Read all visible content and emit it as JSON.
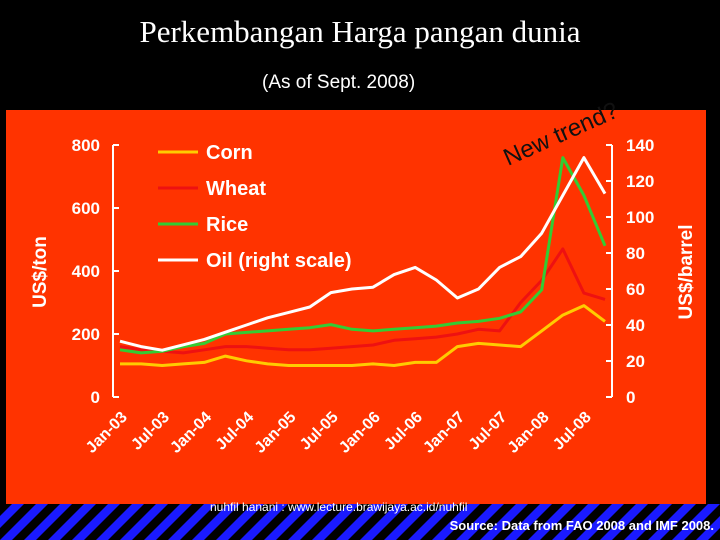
{
  "title": "Perkembangan Harga pangan dunia",
  "subtitle": "(As of Sept. 2008)",
  "watermark": "nuhfil hanani : www.lecture.brawijaya.ac.id/nuhfil",
  "source": "Source: Data from FAO 2008 and IMF 2008.",
  "annotation": "New trend?",
  "colors": {
    "panel": "#ff3300",
    "corn": "#ffcc00",
    "wheat": "#ee1111",
    "rice": "#33cc33",
    "oil": "#ffffff",
    "stripe_blue": "#1a1aff"
  },
  "chart_data": {
    "type": "line",
    "x": [
      "Jan-03",
      "Apr-03",
      "Jul-03",
      "Oct-03",
      "Jan-04",
      "Apr-04",
      "Jul-04",
      "Oct-04",
      "Jan-05",
      "Apr-05",
      "Jul-05",
      "Oct-05",
      "Jan-06",
      "Apr-06",
      "Jul-06",
      "Oct-06",
      "Jan-07",
      "Apr-07",
      "Jul-07",
      "Oct-07",
      "Jan-08",
      "Apr-08",
      "Jul-08",
      "Sep-08"
    ],
    "xticks": [
      "Jan-03",
      "Jul-03",
      "Jan-04",
      "Jul-04",
      "Jan-05",
      "Jul-05",
      "Jan-06",
      "Jul-06",
      "Jan-07",
      "Jul-07",
      "Jan-08",
      "Jul-08"
    ],
    "ylabel": "US$/ton",
    "y2label": "US$/barrel",
    "ylim": [
      0,
      800
    ],
    "y2lim": [
      0,
      140
    ],
    "yticks": [
      "0",
      "200",
      "400",
      "600",
      "800"
    ],
    "y2ticks": [
      "0",
      "20",
      "40",
      "60",
      "80",
      "100",
      "120",
      "140"
    ],
    "series": [
      {
        "name": "Corn",
        "axis": "left",
        "values": [
          105,
          105,
          100,
          105,
          110,
          130,
          115,
          105,
          100,
          100,
          100,
          100,
          105,
          100,
          110,
          110,
          160,
          170,
          165,
          160,
          210,
          260,
          290,
          240
        ]
      },
      {
        "name": "Wheat",
        "axis": "left",
        "values": [
          160,
          150,
          145,
          140,
          150,
          160,
          160,
          155,
          150,
          150,
          155,
          160,
          165,
          180,
          185,
          190,
          200,
          215,
          210,
          300,
          370,
          470,
          330,
          310
        ]
      },
      {
        "name": "Rice",
        "axis": "left",
        "values": [
          150,
          140,
          145,
          160,
          170,
          200,
          205,
          210,
          215,
          220,
          230,
          215,
          210,
          215,
          220,
          225,
          235,
          240,
          250,
          270,
          340,
          760,
          640,
          480
        ]
      },
      {
        "name": "Oil (right scale)",
        "axis": "right",
        "values": [
          31,
          28,
          26,
          29,
          32,
          36,
          40,
          44,
          47,
          50,
          58,
          60,
          61,
          68,
          72,
          65,
          55,
          60,
          72,
          78,
          91,
          112,
          133,
          113
        ]
      }
    ],
    "legend_position": "top-left",
    "grid": false
  }
}
